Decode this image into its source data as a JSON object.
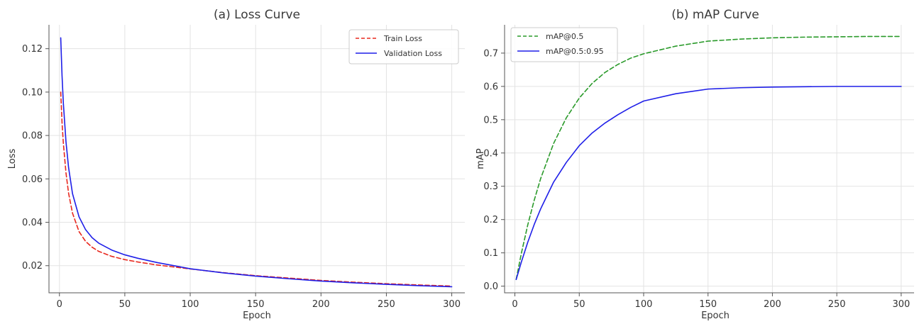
{
  "colors": {
    "train": "#e8281e",
    "validation": "#1f1fe8",
    "map50": "#2a9a2a",
    "map5095": "#1f1fe8",
    "grid": "#e3e3e3"
  },
  "chart_data": [
    {
      "type": "line",
      "title": "(a) Loss Curve",
      "xlabel": "Epoch",
      "ylabel": "Loss",
      "xlim": [
        -8,
        310
      ],
      "ylim": [
        0.0075,
        0.131
      ],
      "xticks": [
        0,
        50,
        100,
        150,
        200,
        250,
        300
      ],
      "yticks": [
        0.02,
        0.04,
        0.06,
        0.08,
        0.1,
        0.12
      ],
      "ytick_labels": [
        "0.02",
        "0.04",
        "0.06",
        "0.08",
        "0.10",
        "0.12"
      ],
      "grid": true,
      "legend_position": "top-right",
      "series": [
        {
          "name": "Train Loss",
          "style": "dashed",
          "color_key": "train",
          "x": [
            1,
            2,
            3,
            5,
            7,
            10,
            15,
            20,
            25,
            30,
            40,
            50,
            60,
            75,
            100,
            125,
            150,
            175,
            200,
            225,
            250,
            275,
            300
          ],
          "y": [
            0.1,
            0.0858,
            0.0764,
            0.0628,
            0.0534,
            0.0442,
            0.0357,
            0.0312,
            0.0285,
            0.0266,
            0.0243,
            0.0228,
            0.0217,
            0.0203,
            0.0185,
            0.0168,
            0.0154,
            0.0143,
            0.0132,
            0.0124,
            0.0117,
            0.0111,
            0.0106
          ]
        },
        {
          "name": "Validation Loss",
          "style": "solid",
          "color_key": "validation",
          "x": [
            1,
            2,
            3,
            5,
            7,
            10,
            15,
            20,
            25,
            30,
            40,
            50,
            60,
            75,
            100,
            125,
            150,
            175,
            200,
            225,
            250,
            275,
            300
          ],
          "y": [
            0.125,
            0.1075,
            0.0948,
            0.0772,
            0.0652,
            0.0532,
            0.0425,
            0.0366,
            0.0329,
            0.0304,
            0.0272,
            0.025,
            0.0234,
            0.0214,
            0.0186,
            0.0167,
            0.0152,
            0.014,
            0.0129,
            0.0121,
            0.0114,
            0.0108,
            0.0103
          ]
        }
      ]
    },
    {
      "type": "line",
      "title": "(b) mAP Curve",
      "xlabel": "Epoch",
      "ylabel": "mAP",
      "xlim": [
        -8,
        310
      ],
      "ylim": [
        -0.02,
        0.785
      ],
      "xticks": [
        0,
        50,
        100,
        150,
        200,
        250,
        300
      ],
      "yticks": [
        0.0,
        0.1,
        0.2,
        0.3,
        0.4,
        0.5,
        0.6,
        0.7
      ],
      "ytick_labels": [
        "0.0",
        "0.1",
        "0.2",
        "0.3",
        "0.4",
        "0.5",
        "0.6",
        "0.7"
      ],
      "grid": true,
      "legend_position": "top-left",
      "series": [
        {
          "name": "mAP@0.5",
          "style": "dashed",
          "color_key": "map50",
          "x": [
            1,
            5,
            10,
            15,
            20,
            30,
            40,
            50,
            60,
            70,
            80,
            90,
            100,
            125,
            150,
            175,
            200,
            225,
            250,
            275,
            300
          ],
          "y": [
            0.02,
            0.098,
            0.184,
            0.258,
            0.323,
            0.428,
            0.506,
            0.565,
            0.609,
            0.642,
            0.666,
            0.685,
            0.698,
            0.721,
            0.736,
            0.742,
            0.746,
            0.748,
            0.749,
            0.75,
            0.75
          ]
        },
        {
          "name": "mAP@0.5:0.95",
          "style": "solid",
          "color_key": "map5095",
          "x": [
            1,
            5,
            10,
            15,
            20,
            30,
            40,
            50,
            60,
            70,
            80,
            90,
            100,
            125,
            150,
            175,
            200,
            225,
            250,
            275,
            300
          ],
          "y": [
            0.02,
            0.072,
            0.132,
            0.185,
            0.232,
            0.312,
            0.372,
            0.422,
            0.46,
            0.49,
            0.515,
            0.537,
            0.556,
            0.578,
            0.592,
            0.596,
            0.598,
            0.599,
            0.6,
            0.6,
            0.6
          ]
        }
      ]
    }
  ]
}
